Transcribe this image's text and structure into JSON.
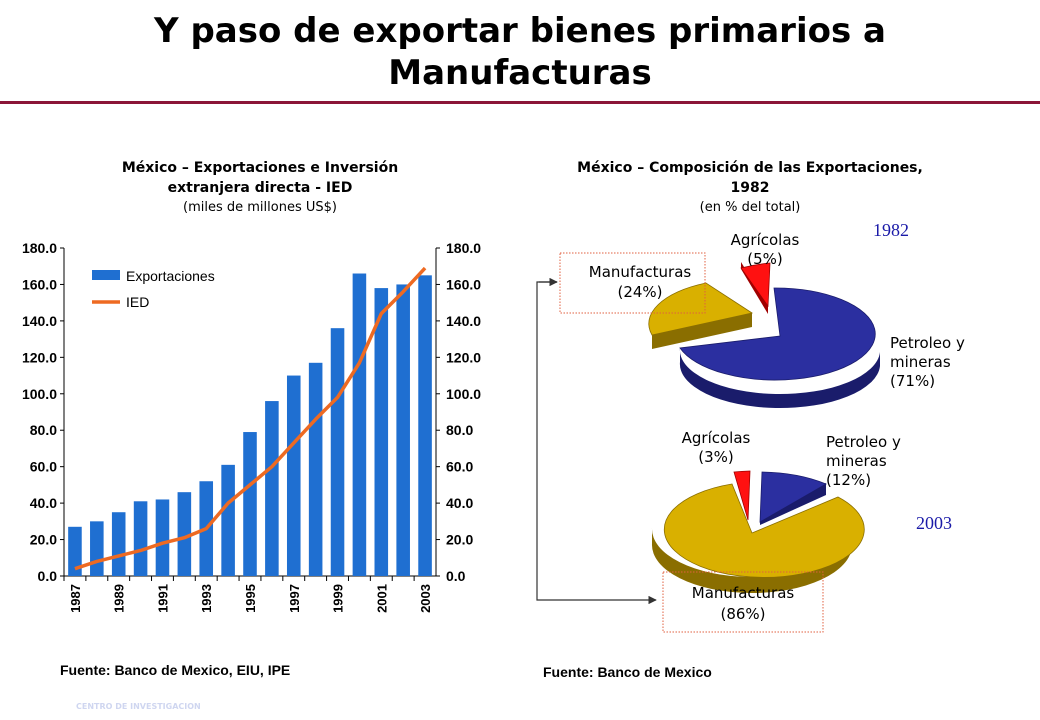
{
  "header": {
    "title_line1": "Y paso de exportar bienes primarios a",
    "title_line2": "Manufacturas"
  },
  "colors": {
    "accent_rule": "#8b1538",
    "bar": "#1f6fd1",
    "line": "#ee6a22",
    "petroleo": "#2b2fa0",
    "manufacturas": "#d9b000",
    "agricolas": "#ff1111",
    "year_label": "#1a1aa8",
    "box_border": "#e06040"
  },
  "chart_data": [
    {
      "type": "bar",
      "title": "México – Exportaciones e Inversión extranjera directa - IED",
      "title_line1": "México – Exportaciones e Inversión",
      "title_line2": "extranjera directa - IED",
      "subtitle": "(miles de millones US$)",
      "categories": [
        "1987",
        "1988",
        "1989",
        "1990",
        "1991",
        "1992",
        "1993",
        "1994",
        "1995",
        "1996",
        "1997",
        "1998",
        "1999",
        "2000",
        "2001",
        "2002",
        "2003"
      ],
      "tick_labels": [
        "1987",
        "1989",
        "1991",
        "1993",
        "1995",
        "1997",
        "1999",
        "2001",
        "2003"
      ],
      "y_ticks": [
        "0.0",
        "20.0",
        "40.0",
        "60.0",
        "80.0",
        "100.0",
        "120.0",
        "140.0",
        "160.0",
        "180.0"
      ],
      "ylim": [
        0,
        180
      ],
      "legend_position": "top-left",
      "series": [
        {
          "name": "Exportaciones",
          "type": "bar",
          "values": [
            27,
            30,
            35,
            41,
            42,
            46,
            52,
            61,
            79,
            96,
            110,
            117,
            136,
            166,
            158,
            160,
            165
          ]
        },
        {
          "name": "IED",
          "type": "line",
          "values": [
            4,
            8,
            11,
            14,
            18,
            21,
            26,
            40,
            50,
            60,
            73,
            86,
            98,
            117,
            144,
            156,
            169
          ]
        }
      ],
      "source": "Fuente: Banco de Mexico, EIU, IPE"
    },
    {
      "type": "pie",
      "title_line1": "México – Composición de las Exportaciones,",
      "title_line2": "1982",
      "subtitle": "(en % del total)",
      "pies": [
        {
          "year": "1982",
          "slices": [
            {
              "name": "Petroleo y mineras",
              "value": 71,
              "label_line1": "Petroleo y",
              "label_line2": "mineras",
              "label_line3": "(71%)"
            },
            {
              "name": "Manufacturas",
              "value": 24,
              "label_line1": "Manufacturas",
              "label_line2": "(24%)"
            },
            {
              "name": "Agrícolas",
              "value": 5,
              "label_line1": "Agrícolas",
              "label_line2": "(5%)"
            }
          ]
        },
        {
          "year": "2003",
          "slices": [
            {
              "name": "Petroleo y mineras",
              "value": 12,
              "label_line1": "Petroleo y",
              "label_line2": "mineras",
              "label_line3": "(12%)"
            },
            {
              "name": "Manufacturas",
              "value": 86,
              "label_line1": "Manufacturas",
              "label_line2": "(86%)"
            },
            {
              "name": "Agrícolas",
              "value": 3,
              "label_line1": "Agrícolas",
              "label_line2": "(3%)"
            }
          ]
        }
      ],
      "source": "Fuente: Banco de Mexico"
    }
  ],
  "footer": {
    "text": "CENTRO DE INVESTIGACION"
  }
}
